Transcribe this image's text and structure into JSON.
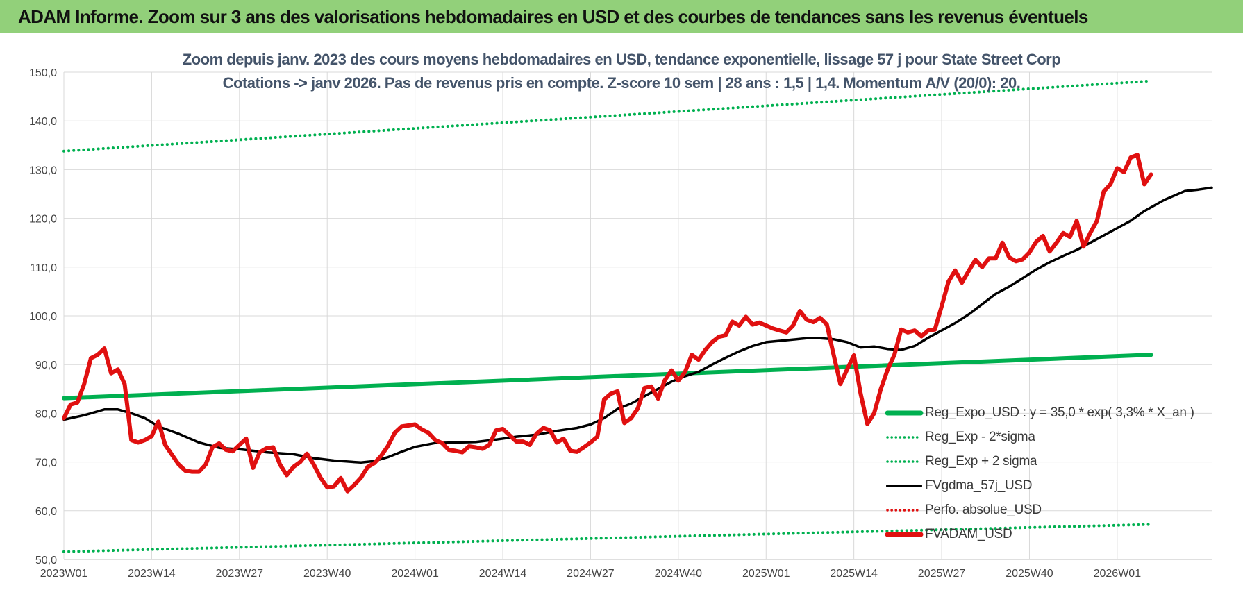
{
  "header": {
    "banner_title": "ADAM Informe. Zoom sur 3 ans des valorisations hebdomadaires en USD et des courbes de tendances sans les revenus éventuels"
  },
  "chart_data": {
    "type": "line",
    "title_line1": "Zoom depuis janv. 2023 des cours moyens hebdomadaires en USD, tendance exponentielle, lissage 57 j pour State Street Corp",
    "title_line2": "Cotations -> janv 2026. Pas de revenus pris en compte. Z-score 10 sem | 28 ans : 1,5 | 1,4. Momentum A/V (20/0): 20.",
    "xlabel": "",
    "ylabel": "",
    "ylim": [
      50,
      150
    ],
    "yticks": [
      "50,0",
      "60,0",
      "70,0",
      "80,0",
      "90,0",
      "100,0",
      "110,0",
      "120,0",
      "130,0",
      "140,0",
      "150,0"
    ],
    "x_tick_labels": [
      "2023W01",
      "2023W14",
      "2023W27",
      "2023W40",
      "2024W01",
      "2024W14",
      "2024W27",
      "2024W40",
      "2025W01",
      "2025W14",
      "2025W27",
      "2025W40",
      "2026W01"
    ],
    "x_tick_week_index": [
      0,
      13,
      26,
      39,
      52,
      65,
      78,
      91,
      104,
      117,
      130,
      143,
      156
    ],
    "last_week_index": 161,
    "grid": true,
    "legend_position": "bottom-right",
    "series": [
      {
        "name": "Reg_Expo_USD : y = 35,0 * exp( 3,3% *  X_an )",
        "color": "#00b050",
        "style": "solid-thick",
        "points": [
          [
            0,
            83.1
          ],
          [
            161,
            92.0
          ]
        ]
      },
      {
        "name": "Reg_Exp - 2*sigma",
        "color": "#00b050",
        "style": "dotted",
        "points": [
          [
            0,
            51.6
          ],
          [
            161,
            57.2
          ]
        ]
      },
      {
        "name": "Reg_Exp + 2 sigma",
        "color": "#00b050",
        "style": "dotted",
        "points": [
          [
            0,
            133.8
          ],
          [
            161,
            148.2
          ]
        ]
      },
      {
        "name": "FVgdma_57j_USD",
        "color": "#000000",
        "style": "solid",
        "points": [
          [
            0,
            78.7
          ],
          [
            3,
            79.6
          ],
          [
            6,
            80.8
          ],
          [
            8,
            80.8
          ],
          [
            10,
            80.0
          ],
          [
            12,
            79.0
          ],
          [
            14,
            77.3
          ],
          [
            17,
            75.8
          ],
          [
            20,
            74.0
          ],
          [
            23,
            72.9
          ],
          [
            26,
            72.6
          ],
          [
            30,
            72.0
          ],
          [
            34,
            71.6
          ],
          [
            37,
            70.8
          ],
          [
            40,
            70.3
          ],
          [
            44,
            69.9
          ],
          [
            46,
            70.2
          ],
          [
            48,
            71.0
          ],
          [
            50,
            72.1
          ],
          [
            52,
            73.1
          ],
          [
            55,
            73.9
          ],
          [
            58,
            74.0
          ],
          [
            61,
            74.1
          ],
          [
            64,
            74.6
          ],
          [
            67,
            75.2
          ],
          [
            70,
            75.6
          ],
          [
            73,
            76.4
          ],
          [
            76,
            77.0
          ],
          [
            78,
            77.7
          ],
          [
            80,
            79.0
          ],
          [
            82,
            80.9
          ],
          [
            84,
            82.0
          ],
          [
            86,
            83.5
          ],
          [
            88,
            85.0
          ],
          [
            90,
            86.5
          ],
          [
            92,
            87.6
          ],
          [
            94,
            88.5
          ],
          [
            96,
            90.0
          ],
          [
            98,
            91.4
          ],
          [
            100,
            92.7
          ],
          [
            102,
            93.8
          ],
          [
            104,
            94.6
          ],
          [
            107,
            95.0
          ],
          [
            110,
            95.4
          ],
          [
            112,
            95.4
          ],
          [
            114,
            95.2
          ],
          [
            116,
            94.6
          ],
          [
            118,
            93.5
          ],
          [
            120,
            93.7
          ],
          [
            122,
            93.2
          ],
          [
            124,
            93.0
          ],
          [
            126,
            93.8
          ],
          [
            128,
            95.5
          ],
          [
            130,
            97.0
          ],
          [
            132,
            98.5
          ],
          [
            134,
            100.3
          ],
          [
            136,
            102.4
          ],
          [
            138,
            104.5
          ],
          [
            140,
            106.0
          ],
          [
            142,
            107.7
          ],
          [
            144,
            109.5
          ],
          [
            146,
            111.0
          ],
          [
            148,
            112.3
          ],
          [
            150,
            113.5
          ],
          [
            152,
            115.0
          ],
          [
            154,
            116.5
          ],
          [
            156,
            118.0
          ],
          [
            158,
            119.5
          ],
          [
            160,
            121.5
          ],
          [
            163,
            123.8
          ],
          [
            166,
            125.6
          ],
          [
            168,
            125.9
          ],
          [
            170,
            126.3
          ]
        ]
      },
      {
        "name": "Perfo. absolue_USD",
        "color": "#e01010",
        "style": "dotted",
        "points": []
      },
      {
        "name": "FVADAM_USD",
        "color": "#e01010",
        "style": "solid-thick",
        "points": [
          [
            0,
            79.0
          ],
          [
            1,
            81.8
          ],
          [
            2,
            82.2
          ],
          [
            3,
            86.0
          ],
          [
            4,
            91.3
          ],
          [
            5,
            92.0
          ],
          [
            6,
            93.3
          ],
          [
            7,
            88.2
          ],
          [
            8,
            89.0
          ],
          [
            9,
            86.0
          ],
          [
            10,
            74.5
          ],
          [
            11,
            74.0
          ],
          [
            12,
            74.5
          ],
          [
            13,
            75.3
          ],
          [
            14,
            78.3
          ],
          [
            15,
            73.5
          ],
          [
            16,
            71.5
          ],
          [
            17,
            69.5
          ],
          [
            18,
            68.2
          ],
          [
            19,
            68.0
          ],
          [
            20,
            68.0
          ],
          [
            21,
            69.5
          ],
          [
            22,
            73.0
          ],
          [
            23,
            73.8
          ],
          [
            24,
            72.5
          ],
          [
            25,
            72.2
          ],
          [
            26,
            73.5
          ],
          [
            27,
            74.8
          ],
          [
            28,
            68.8
          ],
          [
            29,
            72.0
          ],
          [
            30,
            72.8
          ],
          [
            31,
            73.0
          ],
          [
            32,
            69.5
          ],
          [
            33,
            67.3
          ],
          [
            34,
            69.0
          ],
          [
            35,
            70.0
          ],
          [
            36,
            71.7
          ],
          [
            37,
            69.5
          ],
          [
            38,
            66.8
          ],
          [
            39,
            64.8
          ],
          [
            40,
            65.0
          ],
          [
            41,
            66.7
          ],
          [
            42,
            64.0
          ],
          [
            43,
            65.3
          ],
          [
            44,
            66.8
          ],
          [
            45,
            69.0
          ],
          [
            46,
            69.8
          ],
          [
            47,
            71.3
          ],
          [
            48,
            73.3
          ],
          [
            49,
            76.0
          ],
          [
            50,
            77.3
          ],
          [
            51,
            77.5
          ],
          [
            52,
            77.7
          ],
          [
            53,
            76.7
          ],
          [
            54,
            76.0
          ],
          [
            55,
            74.5
          ],
          [
            56,
            73.9
          ],
          [
            57,
            72.5
          ],
          [
            58,
            72.3
          ],
          [
            59,
            72.0
          ],
          [
            60,
            73.2
          ],
          [
            61,
            73.0
          ],
          [
            62,
            72.7
          ],
          [
            63,
            73.5
          ],
          [
            64,
            76.5
          ],
          [
            65,
            76.8
          ],
          [
            66,
            75.5
          ],
          [
            67,
            74.2
          ],
          [
            68,
            74.2
          ],
          [
            69,
            73.5
          ],
          [
            70,
            75.8
          ],
          [
            71,
            77.0
          ],
          [
            72,
            76.5
          ],
          [
            73,
            74.0
          ],
          [
            74,
            74.8
          ],
          [
            75,
            72.3
          ],
          [
            76,
            72.1
          ],
          [
            77,
            73.0
          ],
          [
            78,
            74.0
          ],
          [
            79,
            75.2
          ],
          [
            80,
            82.8
          ],
          [
            81,
            84.0
          ],
          [
            82,
            84.5
          ],
          [
            83,
            78.0
          ],
          [
            84,
            79.0
          ],
          [
            85,
            81.0
          ],
          [
            86,
            85.2
          ],
          [
            87,
            85.5
          ],
          [
            88,
            83.0
          ],
          [
            89,
            86.8
          ],
          [
            90,
            88.8
          ],
          [
            91,
            86.7
          ],
          [
            92,
            88.5
          ],
          [
            93,
            92.0
          ],
          [
            94,
            91.0
          ],
          [
            95,
            93.0
          ],
          [
            96,
            94.6
          ],
          [
            97,
            95.7
          ],
          [
            98,
            96.0
          ],
          [
            99,
            98.8
          ],
          [
            100,
            98.0
          ],
          [
            101,
            99.8
          ],
          [
            102,
            98.2
          ],
          [
            103,
            98.6
          ],
          [
            104,
            98.0
          ],
          [
            105,
            97.4
          ],
          [
            106,
            97.0
          ],
          [
            107,
            96.6
          ],
          [
            108,
            98.0
          ],
          [
            109,
            101.0
          ],
          [
            110,
            99.2
          ],
          [
            111,
            98.7
          ],
          [
            112,
            99.6
          ],
          [
            113,
            98.2
          ],
          [
            114,
            92.0
          ],
          [
            115,
            86.0
          ],
          [
            116,
            89.0
          ],
          [
            117,
            91.9
          ],
          [
            118,
            84.0
          ],
          [
            119,
            77.8
          ],
          [
            120,
            80.0
          ],
          [
            121,
            85.0
          ],
          [
            122,
            89.0
          ],
          [
            123,
            92.0
          ],
          [
            124,
            97.2
          ],
          [
            125,
            96.6
          ],
          [
            126,
            97.0
          ],
          [
            127,
            95.8
          ],
          [
            128,
            97.0
          ],
          [
            129,
            97.2
          ],
          [
            130,
            102.0
          ],
          [
            131,
            107.0
          ],
          [
            132,
            109.3
          ],
          [
            133,
            106.8
          ],
          [
            134,
            109.2
          ],
          [
            135,
            111.5
          ],
          [
            136,
            110.0
          ],
          [
            137,
            111.8
          ],
          [
            138,
            111.8
          ],
          [
            139,
            115.0
          ],
          [
            140,
            112.0
          ],
          [
            141,
            111.2
          ],
          [
            142,
            111.6
          ],
          [
            143,
            113.0
          ],
          [
            144,
            115.2
          ],
          [
            145,
            116.4
          ],
          [
            146,
            113.2
          ],
          [
            147,
            115.0
          ],
          [
            148,
            117.0
          ],
          [
            149,
            116.2
          ],
          [
            150,
            119.5
          ],
          [
            151,
            114.2
          ],
          [
            152,
            117.0
          ],
          [
            153,
            119.5
          ],
          [
            154,
            125.5
          ],
          [
            155,
            127.0
          ],
          [
            156,
            130.3
          ],
          [
            157,
            129.5
          ],
          [
            158,
            132.5
          ],
          [
            159,
            133.0
          ],
          [
            160,
            127.0
          ],
          [
            161,
            129.0
          ]
        ]
      }
    ]
  }
}
